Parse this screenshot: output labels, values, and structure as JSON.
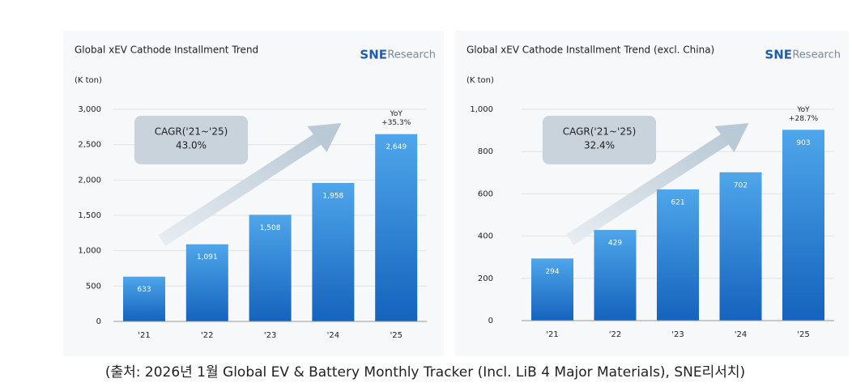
{
  "chart_data": [
    {
      "type": "bar",
      "title": "Global xEV Cathode Installment Trend",
      "unit": "(K ton)",
      "logo": {
        "mark": "SNE",
        "text": "Research"
      },
      "annotation": {
        "label": "CAGR('21~'25)",
        "value": "43.0%"
      },
      "yoy": {
        "label": "YoY",
        "value": "+35.3%"
      },
      "categories": [
        "'21",
        "'22",
        "'23",
        "'24",
        "'25"
      ],
      "values": [
        633,
        1091,
        1508,
        1958,
        2649
      ],
      "value_labels": [
        "633",
        "1,091",
        "1,508",
        "1,958",
        "2,649"
      ],
      "color": "#1b73c8",
      "ylim": [
        0,
        3000
      ],
      "yticks": [
        0,
        500,
        {
          "value": 1000,
          "label": "1,000"
        },
        {
          "value": 1500,
          "label": "1,500"
        },
        {
          "value": 2000,
          "label": "2,000"
        },
        {
          "value": 2500,
          "label": "2,500"
        },
        {
          "value": 3000,
          "label": "3,000"
        }
      ],
      "grid": true
    },
    {
      "type": "bar",
      "title": "Global xEV Cathode Installment Trend (excl. China)",
      "unit": "(K ton)",
      "logo": {
        "mark": "SNE",
        "text": "Research"
      },
      "annotation": {
        "label": "CAGR('21~'25)",
        "value": "32.4%"
      },
      "yoy": {
        "label": "YoY",
        "value": "+28.7%"
      },
      "categories": [
        "'21",
        "'22",
        "'23",
        "'24",
        "'25"
      ],
      "values": [
        294,
        429,
        621,
        702,
        903
      ],
      "color": "#1b73c8",
      "ylim": [
        0,
        1000
      ],
      "yticks": [
        0,
        200,
        400,
        600,
        800,
        {
          "value": 1000,
          "label": "1,000"
        }
      ],
      "grid": true
    }
  ],
  "source": "(출처: 2026년 1월 Global EV & Battery Monthly Tracker (Incl. LiB 4 Major Materials), SNE리서치)"
}
